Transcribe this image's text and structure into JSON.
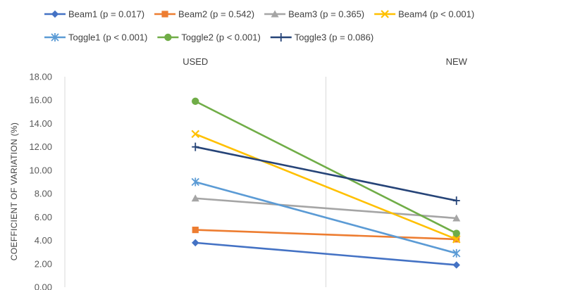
{
  "chart_data": {
    "type": "line",
    "categories": [
      "USED",
      "NEW"
    ],
    "ylabel": "COEFFICIENT OF VARIATION (%)",
    "xlabel": "",
    "title": "",
    "ylim": [
      0,
      18
    ],
    "ytick_step": 2,
    "ytick_labels": [
      "0.00",
      "2.00",
      "4.00",
      "6.00",
      "8.00",
      "10.00",
      "12.00",
      "14.00",
      "16.00",
      "18.00"
    ],
    "legend_position": "top",
    "grid": "vertical category divider only",
    "series": [
      {
        "name": "Beam1 (p = 0.017)",
        "values": [
          3.8,
          1.9
        ],
        "color": "#4472C4",
        "marker": "diamond"
      },
      {
        "name": "Beam2 (p = 0.542)",
        "values": [
          4.9,
          4.1
        ],
        "color": "#ED7D31",
        "marker": "square"
      },
      {
        "name": "Beam3 (p = 0.365)",
        "values": [
          7.6,
          5.9
        ],
        "color": "#A5A5A5",
        "marker": "triangle"
      },
      {
        "name": "Beam4 (p < 0.001)",
        "values": [
          13.1,
          4.1
        ],
        "color": "#FFC000",
        "marker": "x"
      },
      {
        "name": "Toggle1 (p < 0.001)",
        "values": [
          9.0,
          2.9
        ],
        "color": "#5B9BD5",
        "marker": "star"
      },
      {
        "name": "Toggle2 (p < 0.001)",
        "values": [
          15.9,
          4.6
        ],
        "color": "#70AD47",
        "marker": "circle"
      },
      {
        "name": "Toggle3 (p = 0.086)",
        "values": [
          12.0,
          7.4
        ],
        "color": "#264478",
        "marker": "plus"
      }
    ]
  }
}
